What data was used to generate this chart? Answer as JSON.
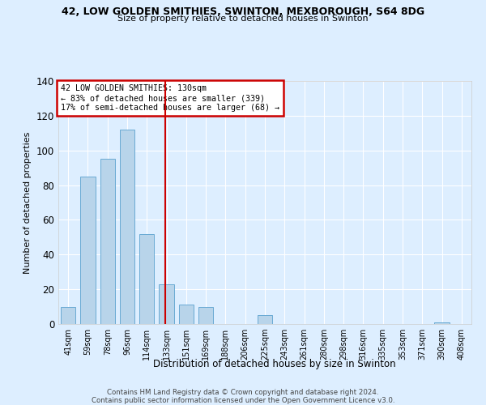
{
  "title": "42, LOW GOLDEN SMITHIES, SWINTON, MEXBOROUGH, S64 8DG",
  "subtitle": "Size of property relative to detached houses in Swinton",
  "xlabel": "Distribution of detached houses by size in Swinton",
  "ylabel": "Number of detached properties",
  "bar_labels": [
    "41sqm",
    "59sqm",
    "78sqm",
    "96sqm",
    "114sqm",
    "133sqm",
    "151sqm",
    "169sqm",
    "188sqm",
    "206sqm",
    "225sqm",
    "243sqm",
    "261sqm",
    "280sqm",
    "298sqm",
    "316sqm",
    "335sqm",
    "353sqm",
    "371sqm",
    "390sqm",
    "408sqm"
  ],
  "bar_values": [
    10,
    85,
    95,
    112,
    52,
    23,
    11,
    10,
    0,
    0,
    5,
    0,
    0,
    0,
    0,
    0,
    0,
    0,
    0,
    1,
    0
  ],
  "bar_color": "#b8d4ea",
  "bar_edge_color": "#6aaad4",
  "background_color": "#ddeeff",
  "grid_color": "#ffffff",
  "ref_line_index": 5,
  "annotation_text": "42 LOW GOLDEN SMITHIES: 130sqm\n← 83% of detached houses are smaller (339)\n17% of semi-detached houses are larger (68) →",
  "annotation_box_color": "#ffffff",
  "annotation_border_color": "#cc0000",
  "ref_line_color": "#cc0000",
  "ylim": [
    0,
    140
  ],
  "yticks": [
    0,
    20,
    40,
    60,
    80,
    100,
    120,
    140
  ],
  "footnote1": "Contains HM Land Registry data © Crown copyright and database right 2024.",
  "footnote2": "Contains public sector information licensed under the Open Government Licence v3.0."
}
